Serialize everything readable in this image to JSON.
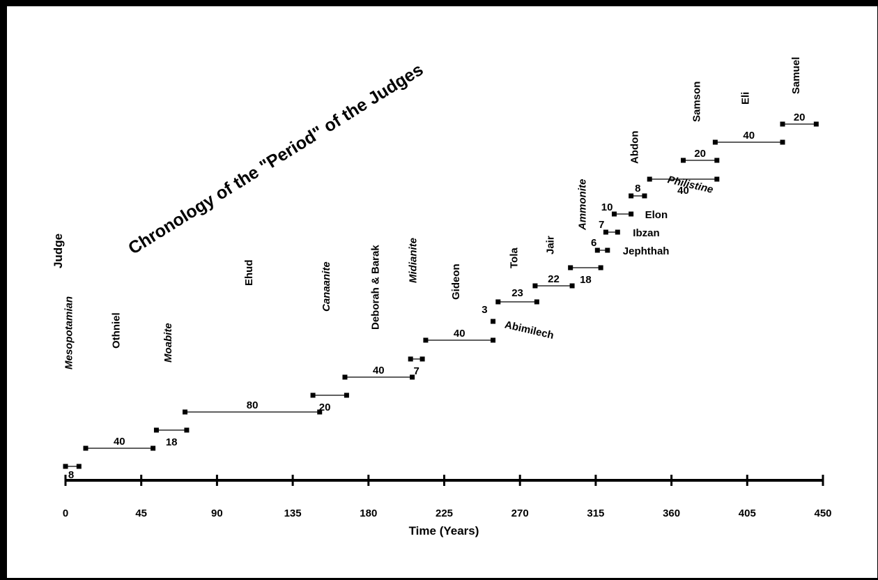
{
  "chart_data": {
    "type": "gantt",
    "title": "Chronology of the \"Period\" of the Judges",
    "xlabel": "Time (Years)",
    "ylabel": "Judge",
    "xlim": [
      0,
      450
    ],
    "xticks": [
      0,
      45,
      90,
      135,
      180,
      225,
      270,
      315,
      360,
      405,
      450
    ],
    "grid": false,
    "legend": "none",
    "series": [
      {
        "name": "Mesopotamian",
        "kind": "oppression",
        "start": 0,
        "duration": 8,
        "duration_label": "8"
      },
      {
        "name": "Othniel",
        "kind": "judge",
        "start": 12,
        "duration": 40,
        "duration_label": "40"
      },
      {
        "name": "Moabite",
        "kind": "oppression",
        "start": 54,
        "duration": 18,
        "duration_label": "18"
      },
      {
        "name": "Ehud",
        "kind": "judge",
        "start": 71,
        "duration": 80,
        "duration_label": "80"
      },
      {
        "name": "Canaanite",
        "kind": "oppression",
        "start": 147,
        "duration": 20,
        "duration_label": "20"
      },
      {
        "name": "Deborah & Barak",
        "kind": "judge",
        "start": 166,
        "duration": 40,
        "duration_label": "40"
      },
      {
        "name": "Midianite",
        "kind": "oppression",
        "start": 205,
        "duration": 7,
        "duration_label": "7"
      },
      {
        "name": "Gideon",
        "kind": "judge",
        "start": 214,
        "duration": 40,
        "duration_label": "40"
      },
      {
        "name": "Abimilech",
        "kind": "judge",
        "start": 254,
        "duration": 3,
        "duration_label": "3"
      },
      {
        "name": "Tola",
        "kind": "judge",
        "start": 257,
        "duration": 23,
        "duration_label": "23"
      },
      {
        "name": "Jair",
        "kind": "judge",
        "start": 279,
        "duration": 22,
        "duration_label": "22"
      },
      {
        "name": "Ammonite",
        "kind": "oppression",
        "start": 300,
        "duration": 18,
        "duration_label": "18"
      },
      {
        "name": "Jephthah",
        "kind": "judge",
        "start": 316,
        "duration": 6,
        "duration_label": "6"
      },
      {
        "name": "Ibzan",
        "kind": "judge",
        "start": 321,
        "duration": 7,
        "duration_label": "7"
      },
      {
        "name": "Elon",
        "kind": "judge",
        "start": 326,
        "duration": 10,
        "duration_label": "10"
      },
      {
        "name": "Abdon",
        "kind": "judge",
        "start": 336,
        "duration": 8,
        "duration_label": "8"
      },
      {
        "name": "Philistine",
        "kind": "oppression",
        "start": 347,
        "duration": 40,
        "duration_label": "40"
      },
      {
        "name": "Samson",
        "kind": "judge",
        "start": 367,
        "duration": 20,
        "duration_label": "20"
      },
      {
        "name": "Eli",
        "kind": "judge",
        "start": 386,
        "duration": 40,
        "duration_label": "40"
      },
      {
        "name": "Samuel",
        "kind": "judge",
        "start": 426,
        "duration": 20,
        "duration_label": "20"
      }
    ]
  }
}
